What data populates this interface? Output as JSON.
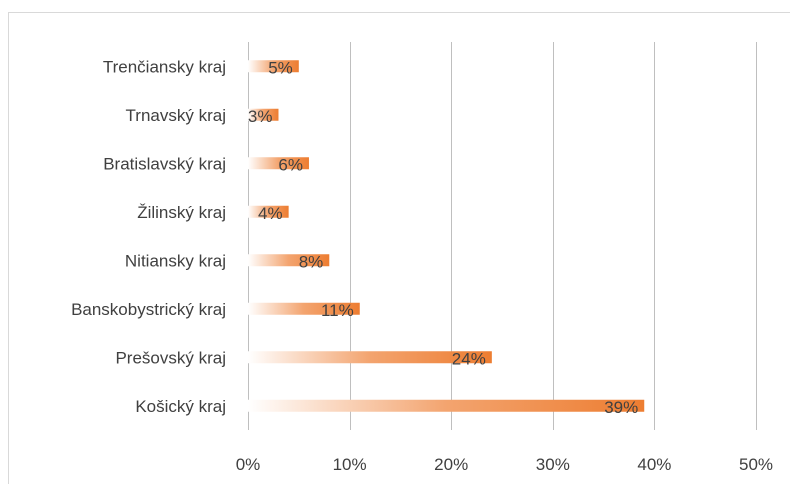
{
  "chart_data": {
    "type": "bar",
    "orientation": "horizontal",
    "categories": [
      "Trenčiansky kraj",
      "Trnavský kraj",
      "Bratislavský kraj",
      "Žilinský kraj",
      "Nitiansky kraj",
      "Banskobystrický kraj",
      "Prešovský kraj",
      "Košický kraj"
    ],
    "values": [
      5,
      3,
      6,
      4,
      8,
      11,
      24,
      39
    ],
    "data_labels": [
      "5%",
      "3%",
      "6%",
      "4%",
      "8%",
      "11%",
      "24%",
      "39%"
    ],
    "xlim": [
      0,
      50
    ],
    "x_ticks": [
      0,
      10,
      20,
      30,
      40,
      50
    ],
    "x_tick_labels": [
      "0%",
      "10%",
      "20%",
      "30%",
      "40%",
      "50%"
    ],
    "grid": "vertical",
    "legend": "none",
    "bar_color": "#ed7d31",
    "bar_fill": "gradient from white (left) to orange (right)",
    "gridline_color": "#bfbfbf",
    "title": "",
    "xlabel": "",
    "ylabel": ""
  }
}
